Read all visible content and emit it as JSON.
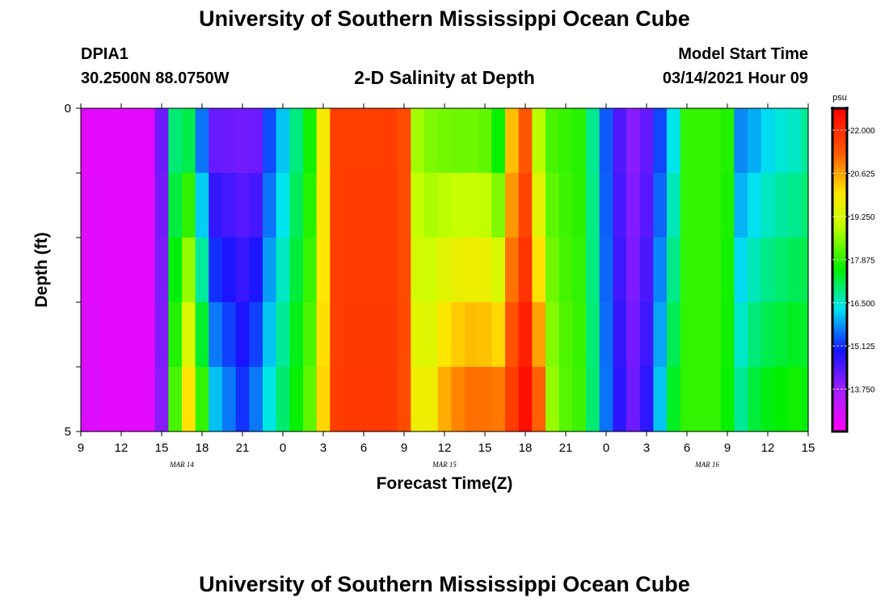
{
  "page": {
    "title_top": "University of Southern Mississippi Ocean Cube",
    "title_bottom": "University of Southern Mississippi Ocean Cube",
    "station_id": "DPIA1",
    "coordinates": "30.2500N 88.0750W",
    "model_start_label": "Model Start Time",
    "model_start_value": "03/14/2021 Hour 09"
  },
  "chart_data": {
    "type": "heatmap",
    "title": "2-D Salinity at Depth",
    "xlabel": "Forecast Time(Z)",
    "ylabel": "Depth (ft)",
    "xlim": [
      0,
      54
    ],
    "ylim": [
      0,
      5
    ],
    "x_ticks": [
      {
        "hour": 0,
        "label": "9"
      },
      {
        "hour": 3,
        "label": "12"
      },
      {
        "hour": 6,
        "label": "15"
      },
      {
        "hour": 9,
        "label": "18"
      },
      {
        "hour": 12,
        "label": "21"
      },
      {
        "hour": 15,
        "label": "0"
      },
      {
        "hour": 18,
        "label": "3"
      },
      {
        "hour": 21,
        "label": "6"
      },
      {
        "hour": 24,
        "label": "9"
      },
      {
        "hour": 27,
        "label": "12"
      },
      {
        "hour": 30,
        "label": "15"
      },
      {
        "hour": 33,
        "label": "18"
      },
      {
        "hour": 36,
        "label": "21"
      },
      {
        "hour": 39,
        "label": "0"
      },
      {
        "hour": 42,
        "label": "3"
      },
      {
        "hour": 45,
        "label": "6"
      },
      {
        "hour": 48,
        "label": "9"
      },
      {
        "hour": 51,
        "label": "12"
      },
      {
        "hour": 54,
        "label": "15"
      }
    ],
    "date_labels": [
      {
        "hour": 7.5,
        "label": "MAR 14"
      },
      {
        "hour": 27,
        "label": "MAR 15"
      },
      {
        "hour": 46.5,
        "label": "MAR 16"
      }
    ],
    "y_ticks": [
      {
        "depth": 0,
        "label": "0"
      },
      {
        "depth": 5,
        "label": "5"
      }
    ],
    "colorbar": {
      "units": "psu",
      "min": 12.4,
      "max": 22.7,
      "ticks": [
        "22.000",
        "20.625",
        "19.250",
        "17.875",
        "16.500",
        "15.125",
        "13.750"
      ],
      "tick_values": [
        22.0,
        20.625,
        19.25,
        17.875,
        16.5,
        15.125,
        13.75
      ]
    },
    "depth_levels": [
      0,
      1,
      2,
      3,
      4,
      5
    ],
    "time_hours": [
      0,
      1,
      2,
      3,
      4,
      5,
      6,
      7,
      8,
      9,
      10,
      11,
      12,
      13,
      14,
      15,
      16,
      17,
      18,
      19,
      20,
      21,
      22,
      23,
      24,
      25,
      26,
      27,
      28,
      29,
      30,
      31,
      32,
      33,
      34,
      35,
      36,
      37,
      38,
      39,
      40,
      41,
      42,
      43,
      44,
      45,
      46,
      47,
      48,
      49,
      50,
      51,
      52,
      53,
      54
    ],
    "surface_values": [
      12.8,
      12.8,
      12.8,
      12.8,
      12.8,
      12.8,
      14.2,
      16.8,
      16.8,
      15.3,
      14.0,
      14.0,
      14.0,
      14.0,
      15.2,
      16.0,
      16.8,
      17.6,
      19.8,
      21.7,
      21.7,
      21.7,
      21.7,
      21.7,
      21.5,
      18.6,
      18.3,
      18.1,
      18.0,
      18.0,
      17.9,
      17.2,
      20.2,
      21.2,
      18.6,
      18.0,
      17.9,
      17.8,
      16.8,
      15.4,
      14.4,
      13.9,
      14.2,
      15.2,
      16.2,
      17.9,
      17.9,
      17.9,
      17.8,
      15.6,
      15.8,
      16.1,
      16.3,
      16.4,
      16.7
    ],
    "bottom_values": [
      13.0,
      12.9,
      12.8,
      12.8,
      12.8,
      12.8,
      13.9,
      18.2,
      20.4,
      18.2,
      16.3,
      15.8,
      15.3,
      15.8,
      16.5,
      17.1,
      17.7,
      18.3,
      20.2,
      21.7,
      21.8,
      21.8,
      21.8,
      21.8,
      21.5,
      19.8,
      19.9,
      20.8,
      21.2,
      21.4,
      21.4,
      21.4,
      21.9,
      22.6,
      21.5,
      18.7,
      18.2,
      18.0,
      17.0,
      15.6,
      14.8,
      14.2,
      14.8,
      16.2,
      17.5,
      17.9,
      17.9,
      17.9,
      17.6,
      16.9,
      17.4,
      17.6,
      17.7,
      17.8,
      17.6
    ]
  }
}
